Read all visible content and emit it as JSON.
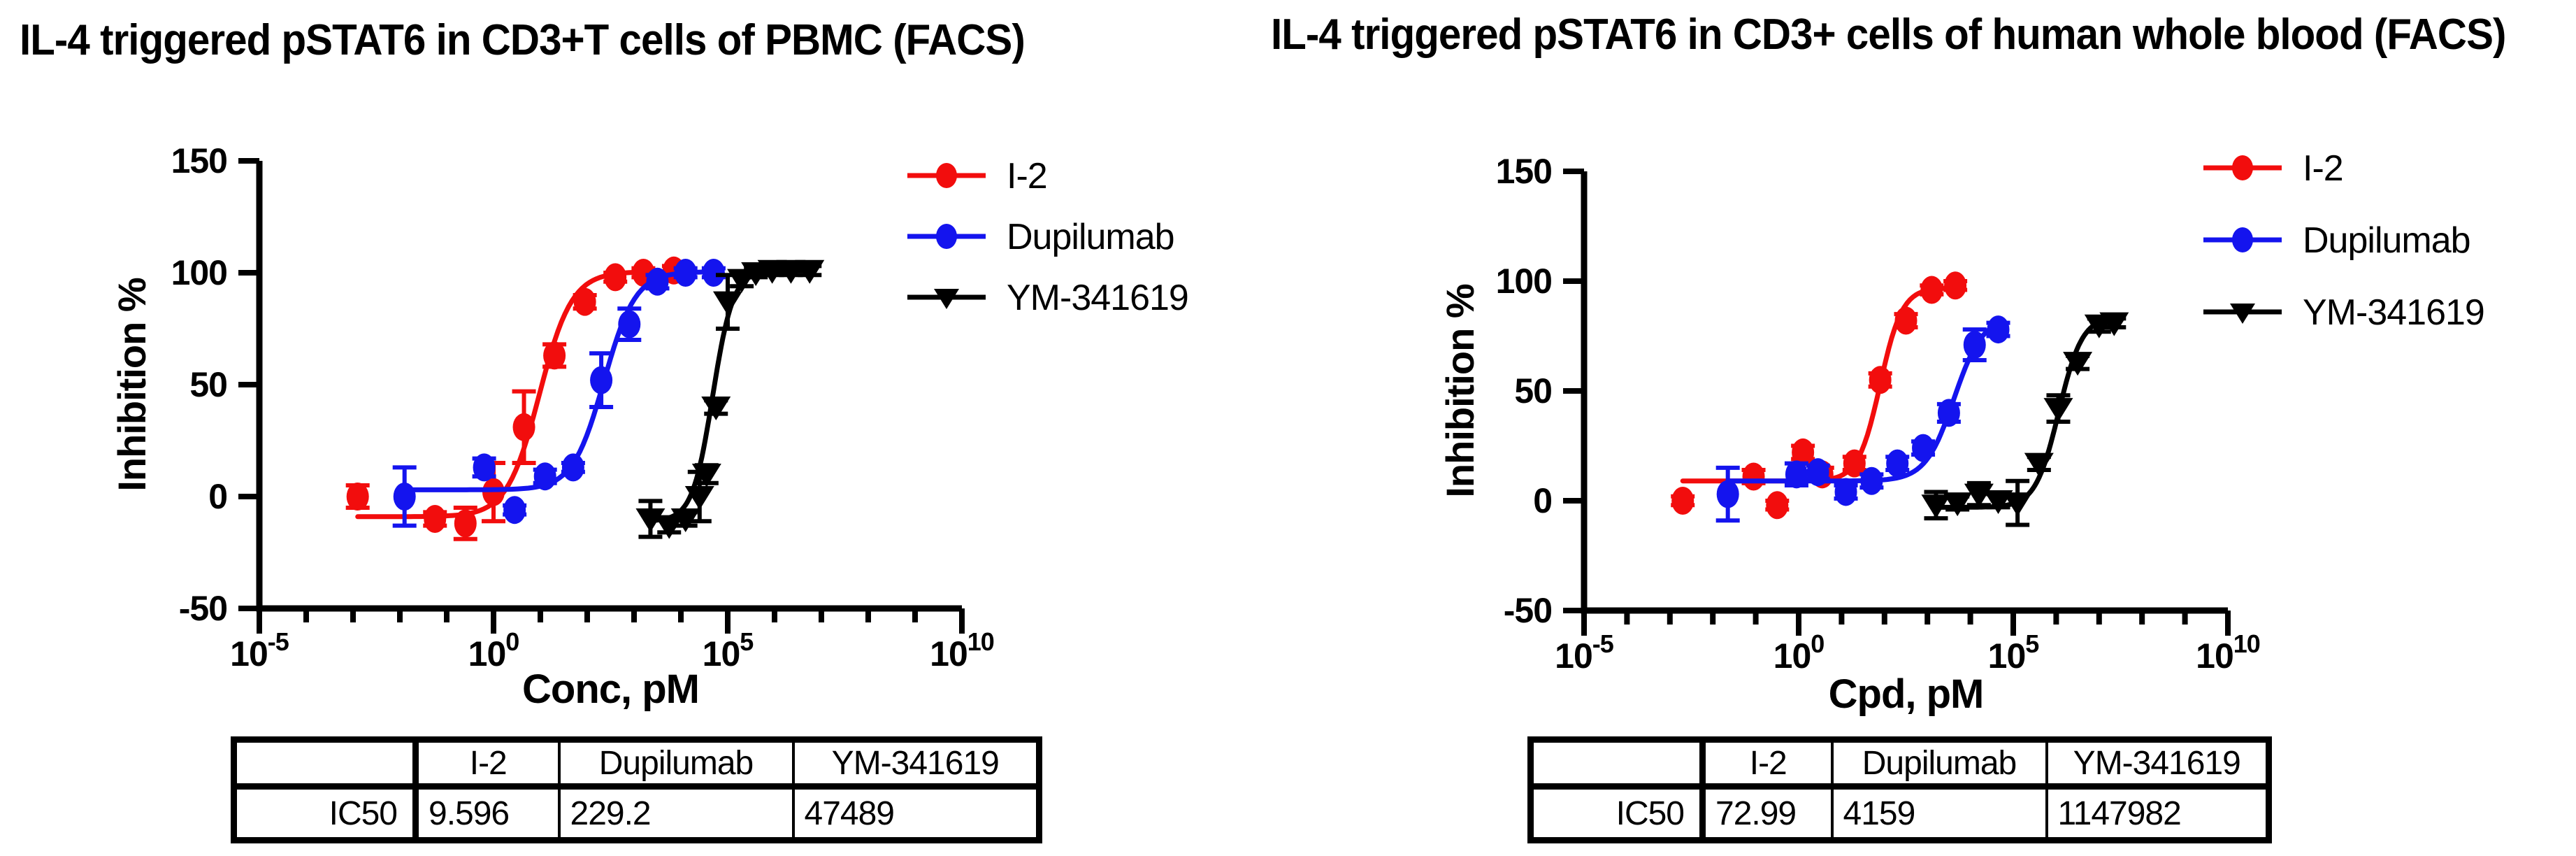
{
  "colors": {
    "red": "#f20d0d",
    "blue": "#1414ee",
    "black": "#000000",
    "axis": "#000000",
    "background": "#ffffff"
  },
  "chart_data": [
    {
      "type": "scatter",
      "title": "IL-4 triggered pSTAT6 in CD3+T cells of PBMC (FACS)",
      "xlabel": "Conc, pM",
      "ylabel": "Inhibition %",
      "x_scale": "log10",
      "xlim_log": [
        -5,
        10
      ],
      "ylim": [
        -50,
        150
      ],
      "grid": false,
      "legend_position": "right-top",
      "y_ticks": [
        150,
        100,
        50,
        0,
        -50
      ],
      "x_major_ticks": [
        {
          "log": -5,
          "mantissa": "10",
          "exponent": "-5"
        },
        {
          "log": 0,
          "mantissa": "10",
          "exponent": "0"
        },
        {
          "log": 5,
          "mantissa": "10",
          "exponent": "5"
        },
        {
          "log": 10,
          "mantissa": "10",
          "exponent": "10"
        }
      ],
      "series": [
        {
          "name": "I-2",
          "color_key": "red",
          "marker": "circle",
          "points": [
            [
              -2.9,
              0,
              5
            ],
            [
              -1.25,
              -10,
              3
            ],
            [
              -0.6,
              -12,
              7
            ],
            [
              0.0,
              2,
              13
            ],
            [
              0.65,
              31,
              16
            ],
            [
              1.3,
              63,
              5
            ],
            [
              1.95,
              87,
              3
            ],
            [
              2.6,
              98,
              2
            ],
            [
              3.2,
              100,
              2
            ],
            [
              3.85,
              101,
              2
            ]
          ],
          "fit": {
            "bottom": -9,
            "top": 100.5,
            "log_ic50": 0.98,
            "hill": 1.25,
            "range_log": [
              -2.9,
              3.85
            ]
          }
        },
        {
          "name": "Dupilumab",
          "color_key": "blue",
          "marker": "circle",
          "points": [
            [
              -1.9,
              0,
              13
            ],
            [
              -0.2,
              13,
              4
            ],
            [
              0.45,
              -6,
              2
            ],
            [
              1.1,
              9,
              3
            ],
            [
              1.7,
              13,
              2
            ],
            [
              2.3,
              52,
              12
            ],
            [
              2.9,
              77,
              7
            ],
            [
              3.5,
              96,
              3
            ],
            [
              4.1,
              100,
              2
            ],
            [
              4.7,
              100,
              2
            ]
          ],
          "fit": {
            "bottom": 3,
            "top": 100.5,
            "log_ic50": 2.36,
            "hill": 1.3,
            "range_log": [
              -1.9,
              4.7
            ]
          }
        },
        {
          "name": "YM-341619",
          "color_key": "black",
          "marker": "triangle-down",
          "points": [
            [
              3.35,
              -10,
              8
            ],
            [
              3.75,
              -13,
              3
            ],
            [
              4.1,
              -10,
              3
            ],
            [
              4.4,
              0,
              11
            ],
            [
              4.55,
              10,
              4
            ],
            [
              4.75,
              40,
              3
            ],
            [
              5.0,
              87,
              12
            ],
            [
              5.3,
              97,
              3
            ],
            [
              5.6,
              100,
              2
            ],
            [
              5.95,
              101,
              2
            ],
            [
              6.35,
              101,
              2
            ],
            [
              6.75,
              101,
              2
            ]
          ],
          "fit": {
            "bottom": -11,
            "top": 101,
            "log_ic50": 4.68,
            "hill": 2.0,
            "range_log": [
              3.35,
              6.75
            ]
          }
        }
      ],
      "ic50_table": {
        "row_label": "IC50",
        "col_headers": [
          "I-2",
          "Dupilumab",
          "YM-341619"
        ],
        "values": [
          "9.596",
          "229.2",
          "47489"
        ]
      }
    },
    {
      "type": "scatter",
      "title": "IL-4 triggered pSTAT6 in CD3+ cells of  human whole blood (FACS)",
      "xlabel": "Cpd, pM",
      "ylabel": "Inhibition %",
      "x_scale": "log10",
      "xlim_log": [
        -5,
        10
      ],
      "ylim": [
        -50,
        150
      ],
      "grid": false,
      "legend_position": "right-top",
      "y_ticks": [
        150,
        100,
        50,
        0,
        -50
      ],
      "x_major_ticks": [
        {
          "log": -5,
          "mantissa": "10",
          "exponent": "-5"
        },
        {
          "log": 0,
          "mantissa": "10",
          "exponent": "0"
        },
        {
          "log": 5,
          "mantissa": "10",
          "exponent": "5"
        },
        {
          "log": 10,
          "mantissa": "10",
          "exponent": "10"
        }
      ],
      "series": [
        {
          "name": "I-2",
          "color_key": "red",
          "marker": "circle",
          "points": [
            [
              -2.7,
              0,
              2
            ],
            [
              -1.05,
              11,
              3
            ],
            [
              -0.5,
              -2,
              2
            ],
            [
              0.1,
              22,
              3
            ],
            [
              0.55,
              12,
              3
            ],
            [
              1.3,
              17,
              3
            ],
            [
              1.9,
              55,
              3
            ],
            [
              2.5,
              82,
              3
            ],
            [
              3.1,
              96,
              2
            ],
            [
              3.65,
              98,
              2
            ]
          ],
          "fit": {
            "bottom": 9,
            "top": 97,
            "log_ic50": 1.9,
            "hill": 1.7,
            "range_log": [
              -2.7,
              3.65
            ]
          }
        },
        {
          "name": "Dupilumab",
          "color_key": "blue",
          "marker": "circle",
          "points": [
            [
              -1.65,
              3,
              12
            ],
            [
              -0.05,
              12,
              5
            ],
            [
              0.45,
              13,
              3
            ],
            [
              1.1,
              4,
              3
            ],
            [
              1.7,
              9,
              3
            ],
            [
              2.3,
              17,
              3
            ],
            [
              2.9,
              24,
              3
            ],
            [
              3.5,
              40,
              4
            ],
            [
              4.1,
              71,
              7
            ],
            [
              4.65,
              78,
              3
            ]
          ],
          "fit": {
            "bottom": 9,
            "top": 84,
            "log_ic50": 3.62,
            "hill": 1.3,
            "range_log": [
              -1.65,
              4.65
            ]
          }
        },
        {
          "name": "YM-341619",
          "color_key": "black",
          "marker": "triangle-down",
          "points": [
            [
              3.2,
              -2,
              6
            ],
            [
              3.7,
              -1,
              3
            ],
            [
              4.2,
              3,
              5
            ],
            [
              4.65,
              0,
              3
            ],
            [
              5.1,
              -1,
              10
            ],
            [
              5.6,
              17,
              3
            ],
            [
              6.05,
              42,
              6
            ],
            [
              6.5,
              63,
              3
            ],
            [
              7.0,
              80,
              3
            ],
            [
              7.35,
              81,
              2
            ]
          ],
          "fit": {
            "bottom": -3,
            "top": 84,
            "log_ic50": 6.06,
            "hill": 1.6,
            "range_log": [
              3.2,
              7.35
            ]
          }
        }
      ],
      "ic50_table": {
        "row_label": "IC50",
        "col_headers": [
          "I-2",
          "Dupilumab",
          "YM-341619"
        ],
        "values": [
          "72.99",
          "4159",
          "1147982"
        ]
      }
    }
  ]
}
